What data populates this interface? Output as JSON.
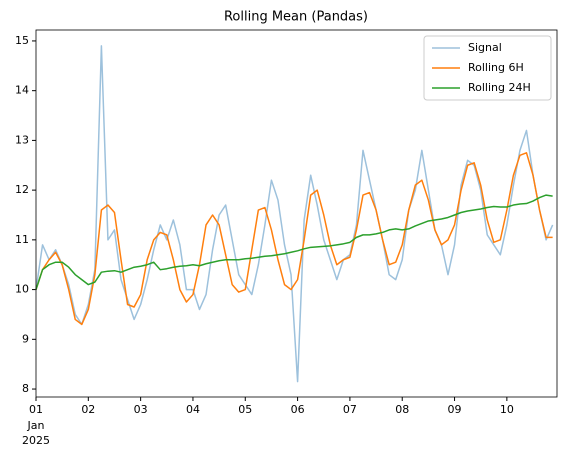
{
  "chart_data": {
    "type": "line",
    "title": "Rolling Mean (Pandas)",
    "x": [
      "2025-01-01 00:00",
      "2025-01-01 03:00",
      "2025-01-01 06:00",
      "2025-01-01 09:00",
      "2025-01-01 12:00",
      "2025-01-01 15:00",
      "2025-01-01 18:00",
      "2025-01-01 21:00",
      "2025-01-02 00:00",
      "2025-01-02 03:00",
      "2025-01-02 06:00",
      "2025-01-02 09:00",
      "2025-01-02 12:00",
      "2025-01-02 15:00",
      "2025-01-02 18:00",
      "2025-01-02 21:00",
      "2025-01-03 00:00",
      "2025-01-03 03:00",
      "2025-01-03 06:00",
      "2025-01-03 09:00",
      "2025-01-03 12:00",
      "2025-01-03 15:00",
      "2025-01-03 18:00",
      "2025-01-03 21:00",
      "2025-01-04 00:00",
      "2025-01-04 03:00",
      "2025-01-04 06:00",
      "2025-01-04 09:00",
      "2025-01-04 12:00",
      "2025-01-04 15:00",
      "2025-01-04 18:00",
      "2025-01-04 21:00",
      "2025-01-05 00:00",
      "2025-01-05 03:00",
      "2025-01-05 06:00",
      "2025-01-05 09:00",
      "2025-01-05 12:00",
      "2025-01-05 15:00",
      "2025-01-05 18:00",
      "2025-01-05 21:00",
      "2025-01-06 00:00",
      "2025-01-06 03:00",
      "2025-01-06 06:00",
      "2025-01-06 09:00",
      "2025-01-06 12:00",
      "2025-01-06 15:00",
      "2025-01-06 18:00",
      "2025-01-06 21:00",
      "2025-01-07 00:00",
      "2025-01-07 03:00",
      "2025-01-07 06:00",
      "2025-01-07 09:00",
      "2025-01-07 12:00",
      "2025-01-07 15:00",
      "2025-01-07 18:00",
      "2025-01-07 21:00",
      "2025-01-08 00:00",
      "2025-01-08 03:00",
      "2025-01-08 06:00",
      "2025-01-08 09:00",
      "2025-01-08 12:00",
      "2025-01-08 15:00",
      "2025-01-08 18:00",
      "2025-01-08 21:00",
      "2025-01-09 00:00",
      "2025-01-09 03:00",
      "2025-01-09 06:00",
      "2025-01-09 09:00",
      "2025-01-09 12:00",
      "2025-01-09 15:00",
      "2025-01-09 18:00",
      "2025-01-09 21:00",
      "2025-01-10 00:00",
      "2025-01-10 03:00",
      "2025-01-10 06:00",
      "2025-01-10 09:00",
      "2025-01-10 12:00",
      "2025-01-10 15:00",
      "2025-01-10 18:00",
      "2025-01-10 21:00"
    ],
    "series": [
      {
        "name": "Signal",
        "color": "#9dc1dc",
        "values": [
          10.0,
          10.9,
          10.6,
          10.8,
          10.5,
          10.1,
          9.5,
          9.3,
          9.7,
          10.4,
          14.9,
          11.0,
          11.2,
          10.2,
          9.8,
          9.4,
          9.7,
          10.2,
          10.8,
          11.3,
          11.0,
          11.4,
          10.9,
          10.0,
          10.0,
          9.6,
          9.9,
          10.8,
          11.5,
          11.7,
          11.0,
          10.3,
          10.1,
          9.9,
          10.5,
          11.3,
          12.2,
          11.8,
          10.9,
          10.3,
          8.15,
          11.4,
          12.3,
          11.7,
          11.0,
          10.6,
          10.2,
          10.6,
          10.7,
          11.3,
          12.8,
          12.2,
          11.6,
          11.0,
          10.3,
          10.2,
          10.6,
          11.6,
          12.0,
          12.8,
          12.0,
          11.2,
          10.9,
          10.3,
          10.9,
          12.1,
          12.6,
          12.5,
          12.0,
          11.1,
          10.9,
          10.7,
          11.3,
          12.1,
          12.8,
          13.2,
          12.3,
          11.6,
          11.0,
          11.3
        ]
      },
      {
        "name": "Rolling 6H",
        "color": "#ff7f0e",
        "values": [
          10.0,
          10.4,
          10.6,
          10.75,
          10.5,
          10.0,
          9.4,
          9.3,
          9.6,
          10.3,
          11.6,
          11.7,
          11.55,
          10.6,
          9.7,
          9.65,
          9.9,
          10.6,
          11.0,
          11.15,
          11.1,
          10.6,
          10.0,
          9.75,
          9.9,
          10.5,
          11.3,
          11.5,
          11.3,
          10.7,
          10.1,
          9.95,
          10.0,
          10.8,
          11.6,
          11.65,
          11.2,
          10.6,
          10.1,
          10.0,
          10.2,
          11.0,
          11.9,
          12.0,
          11.5,
          10.9,
          10.5,
          10.6,
          10.65,
          11.2,
          11.9,
          11.95,
          11.6,
          11.0,
          10.5,
          10.55,
          10.9,
          11.6,
          12.1,
          12.2,
          11.8,
          11.2,
          10.9,
          11.0,
          11.3,
          12.0,
          12.5,
          12.55,
          12.1,
          11.4,
          10.95,
          11.0,
          11.6,
          12.3,
          12.7,
          12.75,
          12.3,
          11.6,
          11.05,
          11.05
        ]
      },
      {
        "name": "Rolling 24H",
        "color": "#2ca02c",
        "values": [
          10.0,
          10.4,
          10.5,
          10.55,
          10.55,
          10.45,
          10.3,
          10.2,
          10.1,
          10.15,
          10.35,
          10.37,
          10.38,
          10.35,
          10.4,
          10.45,
          10.47,
          10.5,
          10.55,
          10.4,
          10.42,
          10.45,
          10.47,
          10.48,
          10.5,
          10.48,
          10.52,
          10.55,
          10.58,
          10.6,
          10.6,
          10.6,
          10.62,
          10.63,
          10.65,
          10.67,
          10.68,
          10.7,
          10.72,
          10.75,
          10.78,
          10.82,
          10.85,
          10.86,
          10.87,
          10.88,
          10.9,
          10.92,
          10.95,
          11.05,
          11.1,
          11.1,
          11.12,
          11.15,
          11.2,
          11.22,
          11.2,
          11.22,
          11.28,
          11.33,
          11.38,
          11.4,
          11.42,
          11.45,
          11.5,
          11.55,
          11.58,
          11.6,
          11.62,
          11.65,
          11.67,
          11.66,
          11.66,
          11.7,
          11.72,
          11.73,
          11.78,
          11.85,
          11.9,
          11.88
        ]
      }
    ],
    "xlim": [
      "2025-01-01 00:00",
      "2025-01-10 23:00"
    ],
    "xticks": [
      {
        "value": "2025-01-01 00:00",
        "label": "01"
      },
      {
        "value": "2025-01-02 00:00",
        "label": "02"
      },
      {
        "value": "2025-01-03 00:00",
        "label": "03"
      },
      {
        "value": "2025-01-04 00:00",
        "label": "04"
      },
      {
        "value": "2025-01-05 00:00",
        "label": "05"
      },
      {
        "value": "2025-01-06 00:00",
        "label": "06"
      },
      {
        "value": "2025-01-07 00:00",
        "label": "07"
      },
      {
        "value": "2025-01-08 00:00",
        "label": "08"
      },
      {
        "value": "2025-01-09 00:00",
        "label": "09"
      },
      {
        "value": "2025-01-10 00:00",
        "label": "10"
      }
    ],
    "xtick_sublabels": [
      "Jan",
      "2025"
    ],
    "ylim": [
      7.84,
      15.22
    ],
    "yticks": [
      8,
      9,
      10,
      11,
      12,
      13,
      14,
      15
    ],
    "legend": "upper right"
  }
}
